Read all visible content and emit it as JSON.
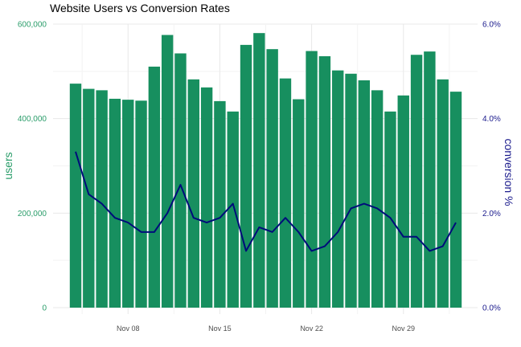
{
  "chart_data": {
    "type": "bar+line",
    "title": "Website Users vs Conversion Rates",
    "ylabel_left": "users",
    "ylabel_right": "conversion %",
    "ylim_left": [
      0,
      600000
    ],
    "ylim_right": [
      0,
      6.0
    ],
    "left_ticks": [
      0,
      200000,
      400000,
      600000
    ],
    "left_tick_labels": [
      "0",
      "200,000",
      "400,000",
      "600,000"
    ],
    "right_ticks": [
      0,
      2,
      4,
      6
    ],
    "right_tick_labels": [
      "0.0%",
      "2.0%",
      "4.0%",
      "6.0%"
    ],
    "x_tick_labels": [
      "Nov 08",
      "Nov 15",
      "Nov 22",
      "Nov 29"
    ],
    "x_tick_dates": [
      "2023-11-08",
      "2023-11-15",
      "2023-11-22",
      "2023-11-29"
    ],
    "dates": [
      "2023-11-04",
      "2023-11-05",
      "2023-11-06",
      "2023-11-07",
      "2023-11-08",
      "2023-11-09",
      "2023-11-10",
      "2023-11-11",
      "2023-11-12",
      "2023-11-13",
      "2023-11-14",
      "2023-11-15",
      "2023-11-16",
      "2023-11-17",
      "2023-11-18",
      "2023-11-19",
      "2023-11-20",
      "2023-11-21",
      "2023-11-22",
      "2023-11-23",
      "2023-11-24",
      "2023-11-25",
      "2023-11-26",
      "2023-11-27",
      "2023-11-28",
      "2023-11-29",
      "2023-11-30",
      "2023-12-01",
      "2023-12-02",
      "2023-12-03"
    ],
    "series": [
      {
        "type": "bar",
        "axis": "left",
        "values": [
          474000,
          463000,
          460000,
          442000,
          440000,
          438000,
          510000,
          577000,
          538000,
          483000,
          466000,
          437000,
          415000,
          556000,
          581000,
          547000,
          485000,
          441000,
          543000,
          532000,
          502000,
          495000,
          481000,
          460000,
          415000,
          449000,
          535000,
          542000,
          483000,
          457000
        ]
      },
      {
        "type": "line",
        "axis": "right",
        "values": [
          3.3,
          2.4,
          2.2,
          1.9,
          1.8,
          1.6,
          1.6,
          2.0,
          2.6,
          1.9,
          1.8,
          1.9,
          2.2,
          1.2,
          1.7,
          1.6,
          1.9,
          1.6,
          1.2,
          1.3,
          1.6,
          2.1,
          2.2,
          2.1,
          1.9,
          1.5,
          1.5,
          1.2,
          1.3,
          1.8
        ]
      }
    ],
    "colors": {
      "bar": "#178f5f",
      "line": "#000c7a",
      "left_axis_text": "#2a9d6a",
      "right_axis_text": "#1a1a8c",
      "grid_major": "#e8e8e8",
      "grid_minor": "#f3f3f3"
    },
    "grid": true,
    "legend": "none"
  }
}
